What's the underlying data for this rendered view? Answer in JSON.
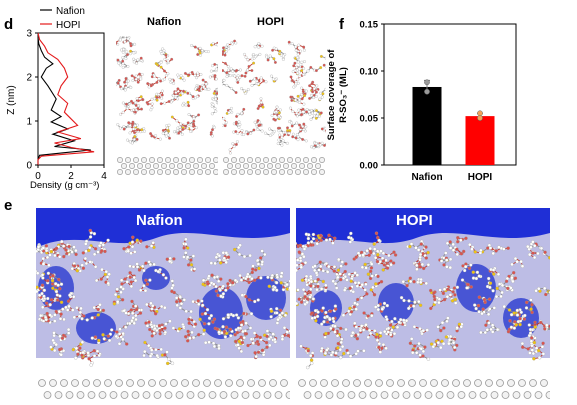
{
  "panels": {
    "d": "d",
    "e": "e",
    "f": "f"
  },
  "density_profile": {
    "legend": [
      "Nafion",
      "HOPI"
    ],
    "colors": {
      "Nafion": "#000000",
      "HOPI": "#e41a1c"
    },
    "ylabel": "Z (nm)",
    "xlabel": "Density (g cm⁻³)",
    "xticks": [
      "0",
      "2",
      "4"
    ],
    "yticks": [
      "0",
      "1",
      "2",
      "3"
    ]
  },
  "snapshots_d": {
    "nafion_title": "Nafion",
    "hopi_title": "HOPI"
  },
  "snapshots_e": {
    "nafion_title": "Nafion",
    "hopi_title": "HOPI"
  },
  "coverage_chart": {
    "ylabel_line1": "Surface coverage of",
    "ylabel_line2": "R-SO₃⁻ (ML)",
    "yticks": [
      "0.00",
      "0.05",
      "0.10",
      "0.15"
    ]
  },
  "chart_data": [
    {
      "type": "line",
      "xlabel": "Density (g cm⁻³)",
      "ylabel": "Z (nm)",
      "xlim": [
        0,
        4
      ],
      "ylim": [
        0,
        3
      ],
      "series": [
        {
          "name": "Nafion",
          "color": "#000000",
          "x": [
            0,
            0,
            0.1,
            1.6,
            3.2,
            1.0,
            2.2,
            0.9,
            1.8,
            0.8,
            1.4,
            0.8,
            1.1,
            0.6,
            0.2,
            0.5,
            0.9,
            0.4,
            0.2,
            0.05,
            0.0
          ],
          "y": [
            0.0,
            0.12,
            0.22,
            0.28,
            0.34,
            0.42,
            0.55,
            0.7,
            0.82,
            0.98,
            1.1,
            1.25,
            1.5,
            1.8,
            2.0,
            2.2,
            2.3,
            2.45,
            2.6,
            2.75,
            2.9
          ]
        },
        {
          "name": "HOPI",
          "color": "#e41a1c",
          "x": [
            0,
            0,
            0.2,
            3.4,
            2.0,
            1.0,
            2.6,
            1.2,
            2.4,
            2.0,
            1.6,
            1.8,
            1.2,
            1.4,
            1.8,
            1.6,
            1.2,
            0.6,
            0.4,
            0.1,
            0.0
          ],
          "y": [
            0.0,
            0.12,
            0.2,
            0.3,
            0.4,
            0.5,
            0.6,
            0.75,
            0.9,
            1.05,
            1.2,
            1.4,
            1.6,
            1.8,
            2.0,
            2.2,
            2.4,
            2.55,
            2.7,
            2.85,
            3.0
          ]
        }
      ]
    },
    {
      "type": "bar",
      "categories": [
        "Nafion",
        "HOPI"
      ],
      "values": [
        0.083,
        0.052
      ],
      "errors": [
        0.007,
        0.003
      ],
      "points": [
        [
          0.078,
          0.088
        ],
        [
          0.05,
          0.055
        ]
      ],
      "colors": [
        "#000000",
        "#ff0000"
      ],
      "ylabel": "Surface coverage of R-SO₃⁻ (ML)",
      "ylim": [
        0,
        0.15
      ]
    }
  ]
}
